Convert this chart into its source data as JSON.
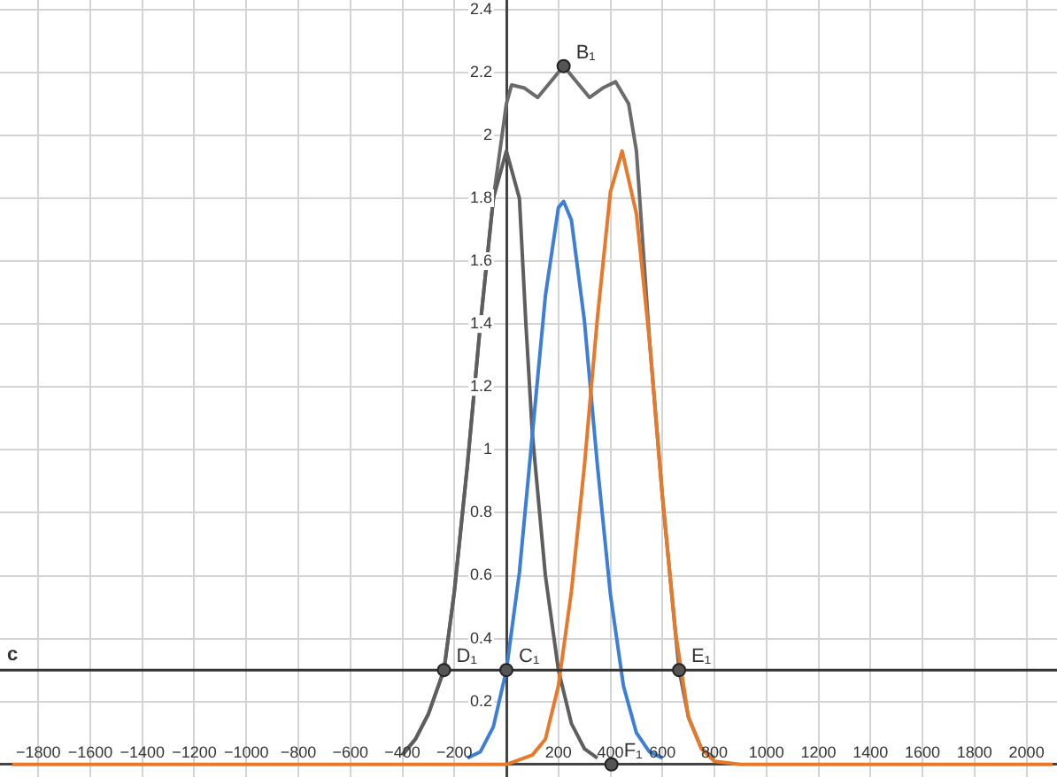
{
  "chart_data": {
    "type": "line",
    "xlim": [
      -1947,
      2117
    ],
    "ylim": [
      -0.04,
      2.43
    ],
    "xticks": [
      {
        "value": -1800,
        "label": "−1800"
      },
      {
        "value": -1600,
        "label": "−1600"
      },
      {
        "value": -1400,
        "label": "−1400"
      },
      {
        "value": -1200,
        "label": "−1200"
      },
      {
        "value": -1000,
        "label": "−1000"
      },
      {
        "value": -800,
        "label": "−800"
      },
      {
        "value": -600,
        "label": "−600"
      },
      {
        "value": -400,
        "label": "−400"
      },
      {
        "value": -200,
        "label": "−200"
      },
      200,
      400,
      600,
      800,
      1000,
      1200,
      1400,
      1600,
      1800,
      2000
    ],
    "yticks": [
      0.2,
      0.4,
      0.6,
      0.8,
      1,
      1.2,
      1.4,
      1.6,
      1.8,
      2,
      2.2,
      2.4
    ],
    "grid": true,
    "legend": false,
    "marker": "none",
    "line_style": "solid",
    "series": [
      {
        "color": "#6b6b6b",
        "x": [
          -400,
          -350,
          -300,
          -240,
          -200,
          -150,
          -100,
          -50,
          0,
          20,
          70,
          120,
          170,
          220,
          270,
          320,
          370,
          420,
          470,
          500,
          550,
          600,
          650,
          664,
          700,
          750,
          800
        ],
        "values": [
          0.03,
          0.08,
          0.16,
          0.3,
          0.55,
          0.95,
          1.4,
          1.8,
          2.1,
          2.16,
          2.15,
          2.12,
          2.17,
          2.22,
          2.17,
          2.12,
          2.15,
          2.17,
          2.1,
          1.95,
          1.35,
          0.85,
          0.42,
          0.3,
          0.15,
          0.05,
          0.02
        ]
      },
      {
        "color": "#5e5e5e",
        "x": [
          -400,
          -350,
          -300,
          -240,
          -200,
          -150,
          -100,
          -50,
          0,
          50,
          75,
          100,
          150,
          200,
          250,
          300,
          350
        ],
        "values": [
          0.03,
          0.08,
          0.16,
          0.3,
          0.55,
          0.95,
          1.4,
          1.8,
          1.95,
          1.8,
          1.4,
          1.05,
          0.6,
          0.3,
          0.13,
          0.05,
          0.02
        ]
      },
      {
        "color": "#3d7fd6",
        "x": [
          -150,
          -100,
          -50,
          0,
          50,
          100,
          150,
          200,
          220,
          250,
          300,
          350,
          400,
          450,
          500,
          550,
          600
        ],
        "values": [
          0.02,
          0.04,
          0.12,
          0.3,
          0.61,
          1.05,
          1.49,
          1.77,
          1.79,
          1.73,
          1.41,
          0.95,
          0.54,
          0.25,
          0.1,
          0.04,
          0.02
        ]
      },
      {
        "color": "#e8792a",
        "x": [
          -1900,
          0,
          100,
          150,
          200,
          250,
          300,
          350,
          400,
          445,
          500,
          550,
          600,
          650,
          700,
          750,
          800,
          900,
          2100
        ],
        "values": [
          0,
          0,
          0.03,
          0.08,
          0.25,
          0.55,
          0.95,
          1.42,
          1.82,
          1.95,
          1.75,
          1.35,
          0.85,
          0.42,
          0.15,
          0.05,
          0.01,
          0,
          0
        ]
      }
    ],
    "ref_lines": [
      {
        "axis": "y",
        "value": 0.3,
        "label": "c",
        "color": "#333333"
      }
    ],
    "annotations": [
      {
        "text": "B₁",
        "x": 220,
        "y": 2.22
      },
      {
        "text": "C₁",
        "x": 0,
        "y": 0.3
      },
      {
        "text": "D₁",
        "x": -240,
        "y": 0.3
      },
      {
        "text": "E₁",
        "x": 664,
        "y": 0.3
      },
      {
        "text": "F₁",
        "x": 404,
        "y": 0
      }
    ]
  }
}
